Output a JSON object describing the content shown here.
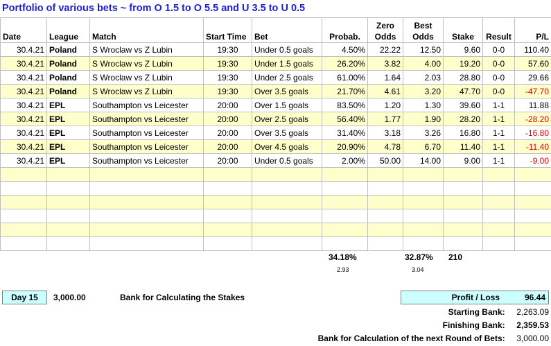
{
  "title": "Portfolio of various bets ~ from O 1.5 to O 5.5 and U 3.5 to U 0.5",
  "headers": {
    "date": "Date",
    "league": "League",
    "match": "Match",
    "start_time": "Start Time",
    "bet": "Bet",
    "probab": "Probab.",
    "zero_odds_1": "Zero",
    "zero_odds_2": "Odds",
    "best_odds_1": "Best",
    "best_odds_2": "Odds",
    "stake": "Stake",
    "result": "Result",
    "pl": "P/L"
  },
  "rows": [
    {
      "date": "30.4.21",
      "league": "Poland",
      "match": "S Wroclaw vs Z Lubin",
      "time": "19:30",
      "bet": "Under 0.5 goals",
      "prob": "4.50%",
      "zero": "22.22",
      "best": "12.50",
      "stake": "9.60",
      "result": "0-0",
      "pl": "110.40",
      "neg": false
    },
    {
      "date": "30.4.21",
      "league": "Poland",
      "match": "S Wroclaw vs Z Lubin",
      "time": "19:30",
      "bet": "Under 1.5 goals",
      "prob": "26.20%",
      "zero": "3.82",
      "best": "4.00",
      "stake": "19.20",
      "result": "0-0",
      "pl": "57.60",
      "neg": false
    },
    {
      "date": "30.4.21",
      "league": "Poland",
      "match": "S Wroclaw vs Z Lubin",
      "time": "19:30",
      "bet": "Under 2.5 goals",
      "prob": "61.00%",
      "zero": "1.64",
      "best": "2.03",
      "stake": "28.80",
      "result": "0-0",
      "pl": "29.66",
      "neg": false
    },
    {
      "date": "30.4.21",
      "league": "Poland",
      "match": "S Wroclaw vs Z Lubin",
      "time": "19:30",
      "bet": "Over 3.5 goals",
      "prob": "21.70%",
      "zero": "4.61",
      "best": "3.20",
      "stake": "47.70",
      "result": "0-0",
      "pl": "-47.70",
      "neg": true
    },
    {
      "date": "30.4.21",
      "league": "EPL",
      "match": "Southampton vs Leicester",
      "time": "20:00",
      "bet": "Over 1.5 goals",
      "prob": "83.50%",
      "zero": "1.20",
      "best": "1.30",
      "stake": "39.60",
      "result": "1-1",
      "pl": "11.88",
      "neg": false
    },
    {
      "date": "30.4.21",
      "league": "EPL",
      "match": "Southampton vs Leicester",
      "time": "20:00",
      "bet": "Over 2.5 goals",
      "prob": "56.40%",
      "zero": "1.77",
      "best": "1.90",
      "stake": "28.20",
      "result": "1-1",
      "pl": "-28.20",
      "neg": true
    },
    {
      "date": "30.4.21",
      "league": "EPL",
      "match": "Southampton vs Leicester",
      "time": "20:00",
      "bet": "Over 3.5 goals",
      "prob": "31.40%",
      "zero": "3.18",
      "best": "3.26",
      "stake": "16.80",
      "result": "1-1",
      "pl": "-16.80",
      "neg": true
    },
    {
      "date": "30.4.21",
      "league": "EPL",
      "match": "Southampton vs Leicester",
      "time": "20:00",
      "bet": "Over 4.5 goals",
      "prob": "20.90%",
      "zero": "4.78",
      "best": "6.70",
      "stake": "11.40",
      "result": "1-1",
      "pl": "-11.40",
      "neg": true
    },
    {
      "date": "30.4.21",
      "league": "EPL",
      "match": "Southampton vs Leicester",
      "time": "20:00",
      "bet": "Under 0.5 goals",
      "prob": "2.00%",
      "zero": "50.00",
      "best": "14.00",
      "stake": "9.00",
      "result": "1-1",
      "pl": "-9.00",
      "neg": true
    }
  ],
  "empty_rows": 6,
  "totals": {
    "prob_pct": "34.18%",
    "prob_sub": "2.93",
    "best_pct": "32.87%",
    "best_sub": "3.04",
    "stake_total": "210"
  },
  "footer": {
    "day_label": "Day 15",
    "bank_value": "3,000.00",
    "bank_label": "Bank for Calculating the Stakes",
    "profit_loss_label": "Profit / Loss",
    "profit_loss_value": "96.44",
    "starting_bank_label": "Starting Bank:",
    "starting_bank_value": "2,263.09",
    "finishing_bank_label": "Finishing Bank:",
    "finishing_bank_value": "2,359.53",
    "next_round_label": "Bank for Calculation of the next Round of Bets:",
    "next_round_value": "3,000.00"
  },
  "colors": {
    "title": "#1f1fd0",
    "band": "#ffffcc",
    "highlight_box": "#ccffff",
    "negative": "#e00000"
  }
}
